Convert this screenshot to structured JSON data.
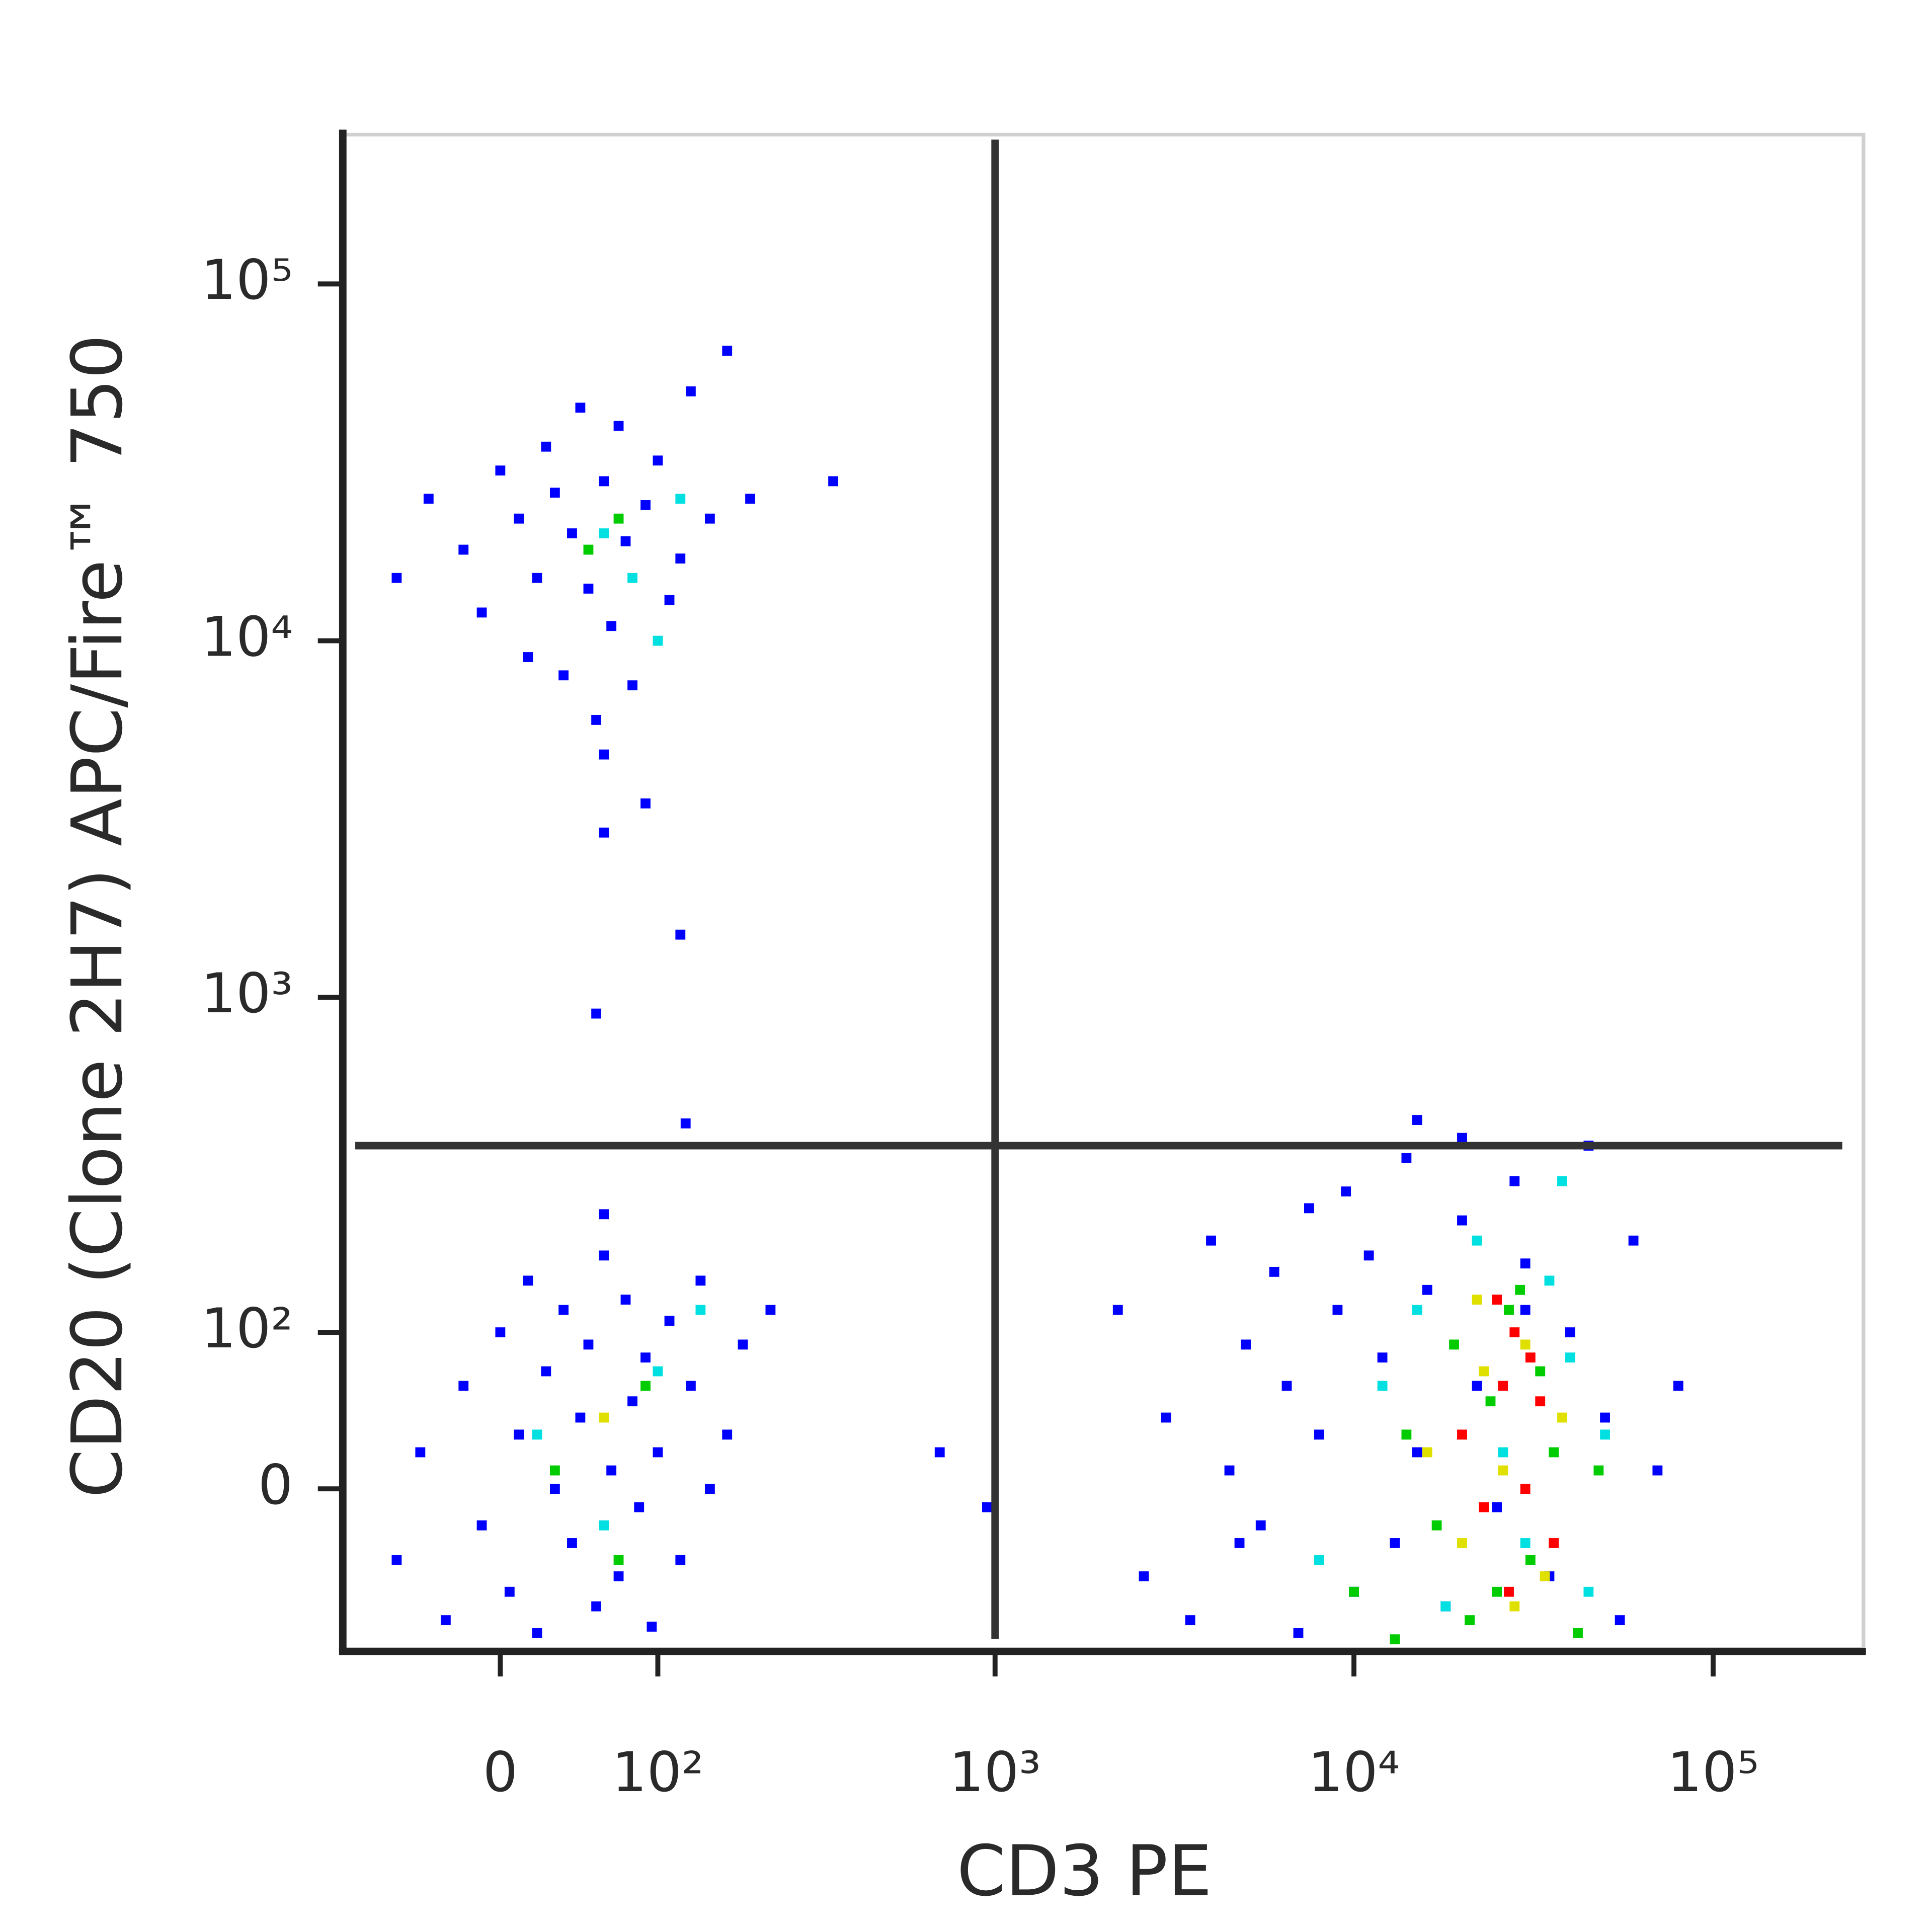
{
  "chart_data": {
    "type": "scatter",
    "xlabel": "CD3 PE",
    "ylabel": "CD20 (Clone 2H7) APC/Fire™ 750",
    "xscale": "biexponential",
    "yscale": "biexponential",
    "xlim": [
      -100,
      262144
    ],
    "ylim": [
      -100,
      262144
    ],
    "xticks": [
      0,
      {
        "value": 100,
        "label": "10²"
      },
      {
        "value": 1000,
        "label": "10³"
      },
      {
        "value": 10000,
        "label": "10⁴"
      },
      {
        "value": 100000,
        "label": "10⁵"
      }
    ],
    "yticks": [
      0,
      {
        "value": 100,
        "label": "10²"
      },
      {
        "value": 1000,
        "label": "10³"
      },
      {
        "value": 10000,
        "label": "10⁴"
      },
      {
        "value": 100000,
        "label": "10⁵"
      }
    ],
    "gates": {
      "x": 1000,
      "y": 380
    },
    "series": [
      {
        "color": "#0000ff",
        "x": [
          -40,
          -20,
          -10,
          0,
          10,
          15,
          20,
          25,
          30,
          35,
          40,
          45,
          50,
          55,
          60,
          65,
          70,
          75,
          80,
          90,
          100,
          110,
          120,
          130,
          150,
          170,
          200,
          350,
          -60,
          60,
          60,
          90,
          120,
          55,
          125,
          -60,
          -45,
          -30,
          -20,
          -10,
          0,
          5,
          10,
          15,
          20,
          25,
          30,
          35,
          40,
          45,
          50,
          55,
          60,
          65,
          70,
          75,
          80,
          85,
          90,
          95,
          100,
          110,
          120,
          130,
          140,
          150,
          170,
          190,
          230,
          60,
          2200,
          2600,
          3000,
          3500,
          4000,
          4500,
          5000,
          5500,
          6000,
          6500,
          7000,
          7500,
          8000,
          9000,
          10000,
          11000,
          12000,
          13000,
          14000,
          15000,
          16000,
          18000,
          20000,
          22000,
          25000,
          28000,
          30000,
          35000,
          40000,
          45000,
          50000,
          55000,
          60000,
          70000,
          80000,
          4800,
          9500,
          15000,
          20000,
          30000,
          700,
          950
        ],
        "y": [
          25000,
          18000,
          12000,
          30000,
          22000,
          9000,
          15000,
          35000,
          26000,
          8000,
          20000,
          45000,
          14000,
          6000,
          28000,
          11000,
          40000,
          19000,
          7500,
          24000,
          32000,
          13000,
          17000,
          50000,
          22000,
          65000,
          25000,
          28000,
          15000,
          4800,
          2900,
          3500,
          1500,
          900,
          440,
          -40,
          20,
          -80,
          60,
          -20,
          100,
          -60,
          30,
          150,
          -90,
          70,
          0,
          120,
          -30,
          40,
          90,
          -70,
          180,
          10,
          -50,
          130,
          50,
          -10,
          80,
          -85,
          20,
          110,
          -40,
          60,
          150,
          0,
          30,
          90,
          120,
          240,
          120,
          -50,
          40,
          -80,
          200,
          10,
          90,
          -20,
          160,
          60,
          -90,
          250,
          30,
          120,
          -60,
          180,
          80,
          -30,
          350,
          20,
          140,
          -70,
          400,
          60,
          -10,
          300,
          170,
          -50,
          100,
          380,
          40,
          -80,
          200,
          10,
          60,
          -30,
          280,
          450,
          230,
          120,
          20,
          -10
        ]
      },
      {
        "color": "#00e0e0",
        "x": [
          60,
          80,
          100,
          120,
          20,
          60,
          100,
          140,
          8000,
          12000,
          15000,
          18000,
          22000,
          26000,
          30000,
          35000,
          40000,
          45000,
          50000,
          38000
        ],
        "y": [
          20000,
          15000,
          10000,
          25000,
          30,
          -20,
          70,
          120,
          -40,
          60,
          120,
          -70,
          200,
          20,
          -30,
          150,
          80,
          -60,
          30,
          300
        ]
      },
      {
        "color": "#00cc00",
        "x": [
          50,
          70,
          30,
          70,
          90,
          10000,
          14000,
          17000,
          19000,
          21000,
          24000,
          27000,
          31000,
          36000,
          42000,
          48000,
          13000,
          25000,
          33000,
          29000
        ],
        "y": [
          18000,
          22000,
          10,
          -40,
          60,
          -60,
          30,
          -20,
          90,
          -80,
          50,
          120,
          -40,
          20,
          -90,
          10,
          -95,
          -60,
          70,
          140
        ]
      },
      {
        "color": "#e0e000",
        "x": [
          60,
          16000,
          20000,
          23000,
          26000,
          30000,
          34000,
          38000,
          22000,
          28000
        ],
        "y": [
          40,
          20,
          -30,
          70,
          10,
          90,
          -50,
          40,
          130,
          -70
        ]
      },
      {
        "color": "#ff0000",
        "x": [
          20000,
          23000,
          26000,
          28000,
          30000,
          33000,
          36000,
          25000,
          31000,
          27000
        ],
        "y": [
          30,
          -10,
          60,
          100,
          0,
          50,
          -30,
          130,
          80,
          -60
        ]
      }
    ]
  }
}
